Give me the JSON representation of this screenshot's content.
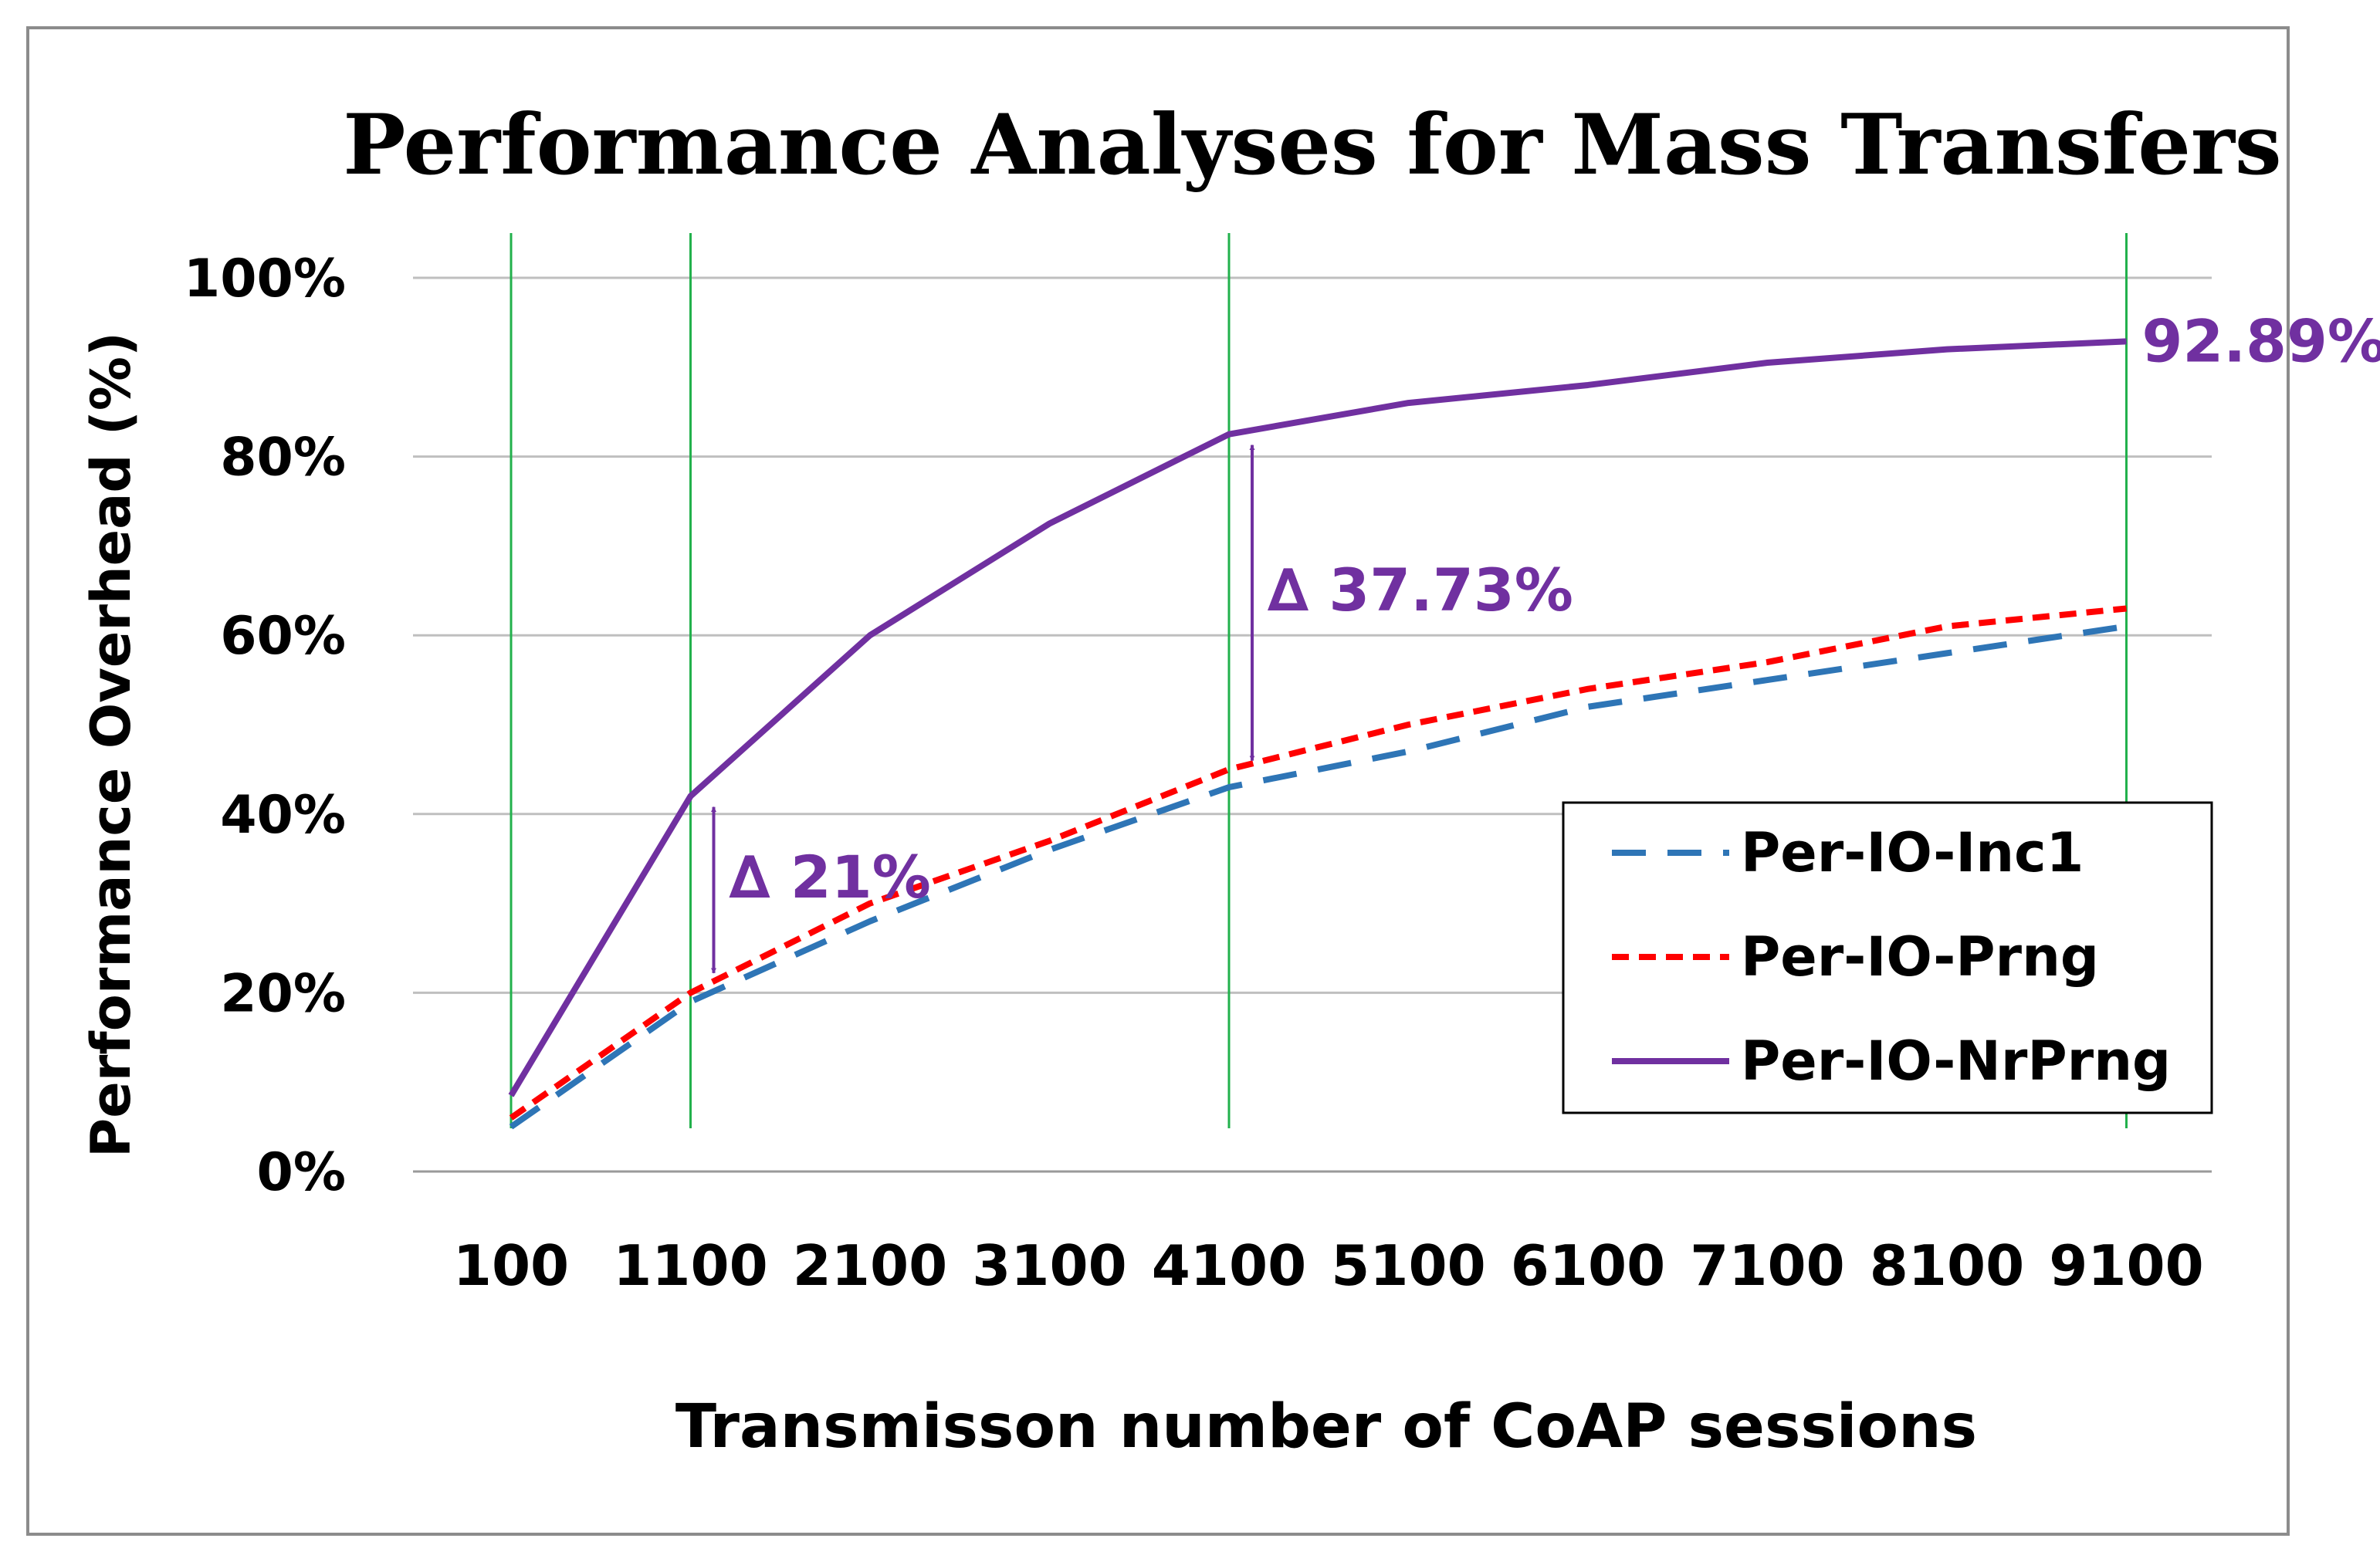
{
  "chart_data": {
    "type": "line",
    "title": "Performance Analyses for Mass Transfers",
    "xlabel": "Transmisson number of CoAP sessions",
    "ylabel": "Performance Overhead (%)",
    "categories": [
      "100",
      "1100",
      "2100",
      "3100",
      "4100",
      "5100",
      "6100",
      "7100",
      "8100",
      "9100"
    ],
    "ylim": [
      0,
      100
    ],
    "yticks": [
      "0%",
      "20%",
      "40%",
      "60%",
      "80%",
      "100%"
    ],
    "series": [
      {
        "name": "Per-IO-Inc1",
        "color": "#2e75b6",
        "dash": "long-dash",
        "values": [
          5,
          19,
          28,
          36,
          43,
          47,
          52,
          55,
          58,
          61
        ]
      },
      {
        "name": "Per-IO-Prng",
        "color": "#ff0000",
        "dash": "short-dash",
        "values": [
          6,
          20,
          30,
          37,
          45,
          50,
          54,
          57,
          61,
          63
        ]
      },
      {
        "name": "Per-IO-NrPrng",
        "color": "#7030a0",
        "dash": "solid",
        "values": [
          8.5,
          42,
          60,
          72.5,
          82.5,
          86,
          88,
          90.5,
          92,
          92.89
        ]
      }
    ],
    "highlight_categories": [
      "100",
      "1100",
      "4100",
      "9100"
    ],
    "annotations": [
      {
        "text": "92.89%",
        "category": "9100",
        "series": "Per-IO-NrPrng"
      },
      {
        "text": "∆ 37.73%",
        "category": "4100",
        "from": 44.77,
        "to": 82.5
      },
      {
        "text": "∆ 21%",
        "category": "1100",
        "from": 21,
        "to": 42
      }
    ],
    "legend": "bottom-right",
    "grid": true
  }
}
